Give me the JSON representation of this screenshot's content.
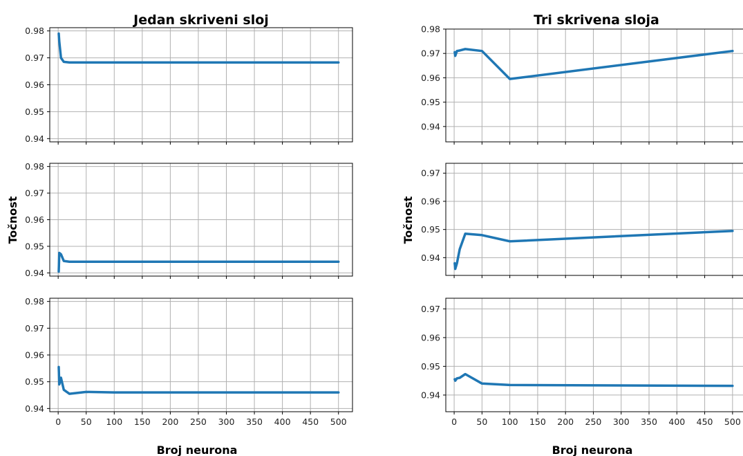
{
  "titles": {
    "left": "Jedan skriveni sloj",
    "right": "Tri skrivena sloja"
  },
  "xlabel": "Broj neurona",
  "ylabel": "Točnost",
  "line_color": "#1f77b4",
  "grid_color": "#b0b0b0",
  "chart_data": [
    {
      "type": "line",
      "title": "Jedan skriveni sloj",
      "xlabel": "",
      "ylabel": "",
      "x": [
        1,
        2,
        5,
        10,
        20,
        50,
        100,
        500
      ],
      "y": [
        0.979,
        0.976,
        0.97,
        0.9685,
        0.9683,
        0.9683,
        0.9683,
        0.9683
      ],
      "xlim": [
        -15,
        525
      ],
      "ylim": [
        0.9388,
        0.9812
      ],
      "yticks": [
        0.94,
        0.95,
        0.96,
        0.97,
        0.98
      ],
      "xticks": [
        0,
        50,
        100,
        150,
        200,
        250,
        300,
        350,
        400,
        450,
        500
      ],
      "grid": true
    },
    {
      "type": "line",
      "title": "",
      "xlabel": "",
      "ylabel": "Točnost",
      "x": [
        1,
        2,
        5,
        10,
        20,
        50,
        100,
        500
      ],
      "y": [
        0.9405,
        0.9475,
        0.947,
        0.9445,
        0.9442,
        0.9442,
        0.9442,
        0.9442
      ],
      "xlim": [
        -15,
        525
      ],
      "ylim": [
        0.9388,
        0.9812
      ],
      "yticks": [
        0.94,
        0.95,
        0.96,
        0.97,
        0.98
      ],
      "xticks": [
        0,
        50,
        100,
        150,
        200,
        250,
        300,
        350,
        400,
        450,
        500
      ],
      "grid": true
    },
    {
      "type": "line",
      "title": "",
      "xlabel": "Broj neurona",
      "ylabel": "",
      "x": [
        1,
        2,
        5,
        10,
        20,
        50,
        100,
        500
      ],
      "y": [
        0.9555,
        0.949,
        0.9515,
        0.947,
        0.9455,
        0.9462,
        0.946,
        0.946
      ],
      "xlim": [
        -15,
        525
      ],
      "ylim": [
        0.9388,
        0.9812
      ],
      "yticks": [
        0.94,
        0.95,
        0.96,
        0.97,
        0.98
      ],
      "xticks": [
        0,
        50,
        100,
        150,
        200,
        250,
        300,
        350,
        400,
        450,
        500
      ],
      "grid": true
    },
    {
      "type": "line",
      "title": "Tri skrivena sloja",
      "xlabel": "",
      "ylabel": "",
      "x": [
        1,
        2,
        5,
        10,
        20,
        50,
        100,
        500
      ],
      "y": [
        0.9705,
        0.969,
        0.971,
        0.9712,
        0.9718,
        0.971,
        0.9595,
        0.971
      ],
      "xlim": [
        -15,
        525
      ],
      "ylim": [
        0.9337,
        0.98
      ],
      "yticks": [
        0.94,
        0.95,
        0.96,
        0.97,
        0.98
      ],
      "xticks": [
        0,
        50,
        100,
        150,
        200,
        250,
        300,
        350,
        400,
        450,
        500
      ],
      "grid": true
    },
    {
      "type": "line",
      "title": "",
      "xlabel": "",
      "ylabel": "Točnost",
      "x": [
        1,
        2,
        5,
        10,
        20,
        50,
        100,
        500
      ],
      "y": [
        0.938,
        0.936,
        0.938,
        0.943,
        0.9485,
        0.948,
        0.9458,
        0.9495
      ],
      "xlim": [
        -15,
        525
      ],
      "ylim": [
        0.9337,
        0.9735
      ],
      "yticks": [
        0.94,
        0.95,
        0.96,
        0.97
      ],
      "xticks": [
        0,
        50,
        100,
        150,
        200,
        250,
        300,
        350,
        400,
        450,
        500
      ],
      "grid": true
    },
    {
      "type": "line",
      "title": "",
      "xlabel": "Broj neurona",
      "ylabel": "",
      "x": [
        1,
        2,
        5,
        10,
        20,
        50,
        100,
        500
      ],
      "y": [
        0.9455,
        0.945,
        0.9458,
        0.946,
        0.9473,
        0.944,
        0.9435,
        0.9432
      ],
      "xlim": [
        -15,
        525
      ],
      "ylim": [
        0.9342,
        0.9737
      ],
      "yticks": [
        0.94,
        0.95,
        0.96,
        0.97
      ],
      "xticks": [
        0,
        50,
        100,
        150,
        200,
        250,
        300,
        350,
        400,
        450,
        500
      ],
      "grid": true
    }
  ]
}
